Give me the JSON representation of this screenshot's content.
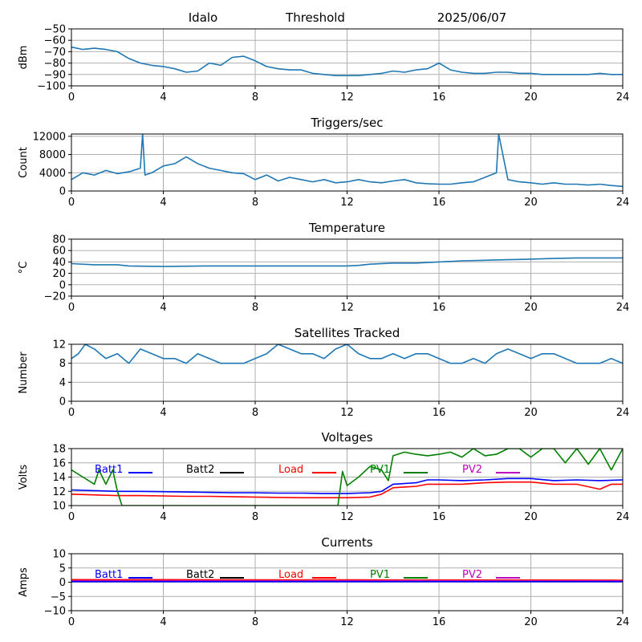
{
  "header": {
    "site": "Idalo",
    "mode": "Threshold",
    "date": "2025/06/07"
  },
  "colors": {
    "main": "#1f77b4",
    "grid": "#b0b0b0",
    "Batt1": "#0000ff",
    "Batt2": "#000000",
    "Load": "#ff0000",
    "PV1": "#008000",
    "PV2": "#bf00bf"
  },
  "chart_data": [
    {
      "id": "rssi",
      "type": "line",
      "title": "",
      "xlabel": "",
      "ylabel": "dBm",
      "xlim": [
        0,
        24
      ],
      "ylim": [
        -100,
        -50
      ],
      "xticks": [
        0,
        4,
        8,
        12,
        16,
        20,
        24
      ],
      "yticks": [
        -100,
        -90,
        -80,
        -70,
        -60,
        -50
      ],
      "grid": true,
      "series": [
        {
          "color": "main",
          "x": [
            0,
            0.5,
            1,
            1.5,
            2,
            2.5,
            3,
            3.5,
            4,
            4.5,
            5,
            5.5,
            6,
            6.5,
            7,
            7.5,
            8,
            8.5,
            9,
            9.5,
            10,
            10.5,
            11,
            11.5,
            12,
            12.5,
            13,
            13.5,
            14,
            14.5,
            15,
            15.5,
            16,
            16.5,
            17,
            17.5,
            18,
            18.5,
            19,
            19.5,
            20,
            20.5,
            21,
            21.5,
            22,
            22.5,
            23,
            23.5,
            24
          ],
          "y": [
            -66,
            -68,
            -67,
            -68,
            -70,
            -76,
            -80,
            -82,
            -83,
            -85,
            -88,
            -87,
            -80,
            -82,
            -75,
            -74,
            -78,
            -83,
            -85,
            -86,
            -86,
            -89,
            -90,
            -91,
            -91,
            -91,
            -90,
            -89,
            -87,
            -88,
            -86,
            -85,
            -80,
            -86,
            -88,
            -89,
            -89,
            -88,
            -88,
            -89,
            -89,
            -90,
            -90,
            -90,
            -90,
            -90,
            -89,
            -90,
            -90
          ]
        }
      ]
    },
    {
      "id": "triggers",
      "type": "line",
      "title": "Triggers/sec",
      "xlabel": "",
      "ylabel": "Count",
      "xlim": [
        0,
        24
      ],
      "ylim": [
        0,
        12500
      ],
      "xticks": [
        0,
        4,
        8,
        12,
        16,
        20,
        24
      ],
      "yticks": [
        0,
        4000,
        8000,
        12000
      ],
      "grid": true,
      "series": [
        {
          "color": "main",
          "x": [
            0,
            0.5,
            1,
            1.5,
            2,
            2.5,
            3,
            3.1,
            3.2,
            3.5,
            4,
            4.5,
            5,
            5.5,
            6,
            6.5,
            7,
            7.5,
            8,
            8.5,
            9,
            9.5,
            10,
            10.5,
            11,
            11.5,
            12,
            12.5,
            13,
            13.5,
            14,
            14.5,
            15,
            15.5,
            16,
            16.5,
            17,
            17.5,
            18,
            18.5,
            18.6,
            19,
            19.5,
            20,
            20.5,
            21,
            21.5,
            22,
            22.5,
            23,
            23.5,
            24
          ],
          "y": [
            2500,
            4000,
            3500,
            4500,
            3800,
            4200,
            5000,
            12500,
            3500,
            4000,
            5500,
            6000,
            7500,
            6000,
            5000,
            4500,
            4000,
            3800,
            2500,
            3500,
            2200,
            3000,
            2500,
            2000,
            2500,
            1800,
            2000,
            2500,
            2000,
            1800,
            2200,
            2500,
            1800,
            1600,
            1500,
            1500,
            1800,
            2000,
            3000,
            4000,
            12500,
            2500,
            2000,
            1800,
            1500,
            1800,
            1500,
            1500,
            1300,
            1500,
            1200,
            1000
          ]
        }
      ]
    },
    {
      "id": "temperature",
      "type": "line",
      "title": "Temperature",
      "xlabel": "",
      "ylabel": "°C",
      "xlim": [
        0,
        24
      ],
      "ylim": [
        -20,
        80
      ],
      "xticks": [
        0,
        4,
        8,
        12,
        16,
        20,
        24
      ],
      "yticks": [
        -20,
        0,
        20,
        40,
        60,
        80
      ],
      "grid": true,
      "series": [
        {
          "color": "main",
          "x": [
            0,
            1,
            2,
            2.5,
            4,
            6,
            8,
            10,
            12,
            12.5,
            13,
            14,
            15,
            16,
            17,
            18,
            19,
            20,
            21,
            22,
            23,
            24
          ],
          "y": [
            37,
            35,
            35,
            33,
            32,
            33,
            33,
            33,
            33,
            34,
            36,
            38,
            38,
            40,
            42,
            43,
            44,
            45,
            46,
            47,
            47,
            47
          ]
        }
      ]
    },
    {
      "id": "satellites",
      "type": "line",
      "title": "Satellites Tracked",
      "xlabel": "",
      "ylabel": "Number",
      "xlim": [
        0,
        24
      ],
      "ylim": [
        0,
        12
      ],
      "xticks": [
        0,
        4,
        8,
        12,
        16,
        20,
        24
      ],
      "yticks": [
        0,
        4,
        8,
        12
      ],
      "grid": true,
      "series": [
        {
          "color": "main",
          "x": [
            0,
            0.3,
            0.6,
            1,
            1.5,
            2,
            2.5,
            3,
            3.5,
            4,
            4.5,
            5,
            5.5,
            6,
            6.5,
            7,
            7.5,
            8,
            8.5,
            9,
            9.5,
            10,
            10.5,
            11,
            11.5,
            12,
            12.5,
            13,
            13.5,
            14,
            14.5,
            15,
            15.5,
            16,
            16.5,
            17,
            17.5,
            18,
            18.5,
            19,
            19.5,
            20,
            20.5,
            21,
            21.5,
            22,
            22.5,
            23,
            23.5,
            24
          ],
          "y": [
            9,
            10,
            12,
            11,
            9,
            10,
            8,
            11,
            10,
            9,
            9,
            8,
            10,
            9,
            8,
            8,
            8,
            9,
            10,
            12,
            11,
            10,
            10,
            9,
            11,
            12,
            10,
            9,
            9,
            10,
            9,
            10,
            10,
            9,
            8,
            8,
            9,
            8,
            10,
            11,
            10,
            9,
            10,
            10,
            9,
            8,
            8,
            8,
            9,
            8
          ]
        }
      ]
    },
    {
      "id": "voltages",
      "type": "line",
      "title": "Voltages",
      "xlabel": "",
      "ylabel": "Volts",
      "xlim": [
        0,
        24
      ],
      "ylim": [
        10,
        18
      ],
      "xticks": [
        0,
        4,
        8,
        12,
        16,
        20,
        24
      ],
      "yticks": [
        10,
        12,
        14,
        16,
        18
      ],
      "grid": true,
      "legend": [
        "Batt1",
        "Batt2",
        "Load",
        "PV1",
        "PV2"
      ],
      "series": [
        {
          "name": "Batt1",
          "color": "Batt1",
          "x": [
            0,
            1,
            2,
            3,
            4,
            5,
            6,
            7,
            8,
            9,
            10,
            11,
            12,
            13,
            13.5,
            14,
            15,
            15.5,
            16,
            17,
            18,
            19,
            20,
            21,
            22,
            23,
            24
          ],
          "y": [
            12.2,
            12.1,
            12.0,
            12.0,
            11.95,
            11.9,
            11.85,
            11.8,
            11.8,
            11.75,
            11.75,
            11.7,
            11.7,
            11.8,
            12.0,
            13.0,
            13.2,
            13.6,
            13.6,
            13.5,
            13.6,
            13.8,
            13.8,
            13.5,
            13.6,
            13.5,
            13.6
          ]
        },
        {
          "name": "Load",
          "color": "Load",
          "x": [
            0,
            1,
            2,
            3,
            4,
            5,
            6,
            7,
            8,
            9,
            10,
            11,
            12,
            13,
            13.5,
            14,
            15,
            15.5,
            16,
            17,
            18,
            19,
            20,
            21,
            22,
            23,
            23.5,
            24
          ],
          "y": [
            11.6,
            11.5,
            11.4,
            11.4,
            11.35,
            11.3,
            11.3,
            11.25,
            11.2,
            11.15,
            11.1,
            11.1,
            11.1,
            11.2,
            11.6,
            12.5,
            12.7,
            13.0,
            13.0,
            13.0,
            13.2,
            13.3,
            13.3,
            13.0,
            13.0,
            12.3,
            13.0,
            13.0
          ]
        },
        {
          "name": "PV1",
          "color": "PV1",
          "x": [
            0,
            0.5,
            1,
            1.2,
            1.5,
            1.8,
            2,
            2.2,
            11.6,
            11.8,
            12,
            12.5,
            13,
            13.5,
            13.8,
            14,
            14.5,
            15,
            15.5,
            16,
            16.5,
            17,
            17.5,
            18,
            18.5,
            19,
            19.5,
            20,
            20.5,
            21,
            21.5,
            22,
            22.5,
            23,
            23.5,
            24
          ],
          "y": [
            15.0,
            14.0,
            13.0,
            15.0,
            13.0,
            15.0,
            12.0,
            10.0,
            10.0,
            14.8,
            12.8,
            14.0,
            15.5,
            15.0,
            13.5,
            17.0,
            17.5,
            17.2,
            17.0,
            17.2,
            17.5,
            16.8,
            18.0,
            17.0,
            17.2,
            18.0,
            18.0,
            16.8,
            18.0,
            18.0,
            16.0,
            18.0,
            15.8,
            18.0,
            15.0,
            18.0
          ]
        }
      ]
    },
    {
      "id": "currents",
      "type": "line",
      "title": "Currents",
      "xlabel": "",
      "ylabel": "Amps",
      "xlim": [
        0,
        24
      ],
      "ylim": [
        -10,
        10
      ],
      "xticks": [
        0,
        4,
        8,
        12,
        16,
        20,
        24
      ],
      "yticks": [
        -10,
        -5,
        0,
        5,
        10
      ],
      "grid": true,
      "legend": [
        "Batt1",
        "Batt2",
        "Load",
        "PV1",
        "PV2"
      ],
      "series": [
        {
          "name": "Load",
          "color": "Load",
          "x": [
            0,
            4,
            8,
            12,
            16,
            20,
            24
          ],
          "y": [
            0.9,
            0.9,
            0.85,
            0.85,
            0.8,
            0.75,
            0.7
          ]
        },
        {
          "name": "PV2",
          "color": "PV2",
          "x": [
            0,
            4,
            8,
            12,
            16,
            20,
            24
          ],
          "y": [
            0.5,
            0.5,
            0.5,
            0.5,
            0.5,
            0.45,
            0.45
          ]
        },
        {
          "name": "Batt1",
          "color": "Batt1",
          "x": [
            0,
            4,
            8,
            12,
            16,
            20,
            24
          ],
          "y": [
            0.2,
            0.2,
            0.2,
            0.2,
            0.2,
            0.2,
            0.2
          ]
        }
      ]
    }
  ]
}
